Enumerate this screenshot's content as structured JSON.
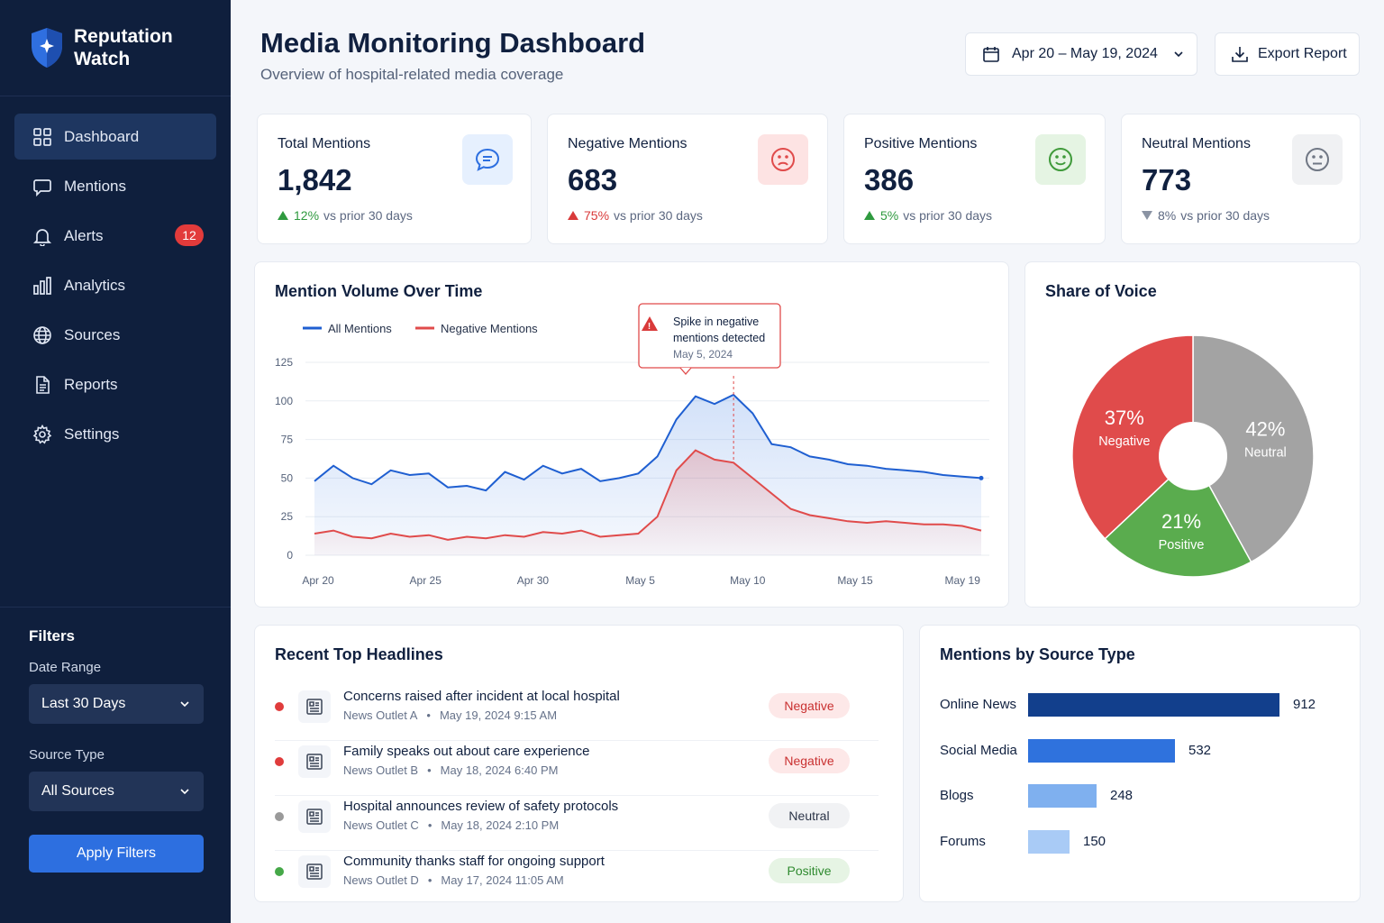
{
  "app": {
    "name": "Reputation Watch"
  },
  "nav": [
    {
      "label": "Dashboard",
      "icon": "grid-icon",
      "active": true
    },
    {
      "label": "Mentions",
      "icon": "chat-icon"
    },
    {
      "label": "Alerts",
      "icon": "bell-icon",
      "badge": "12"
    },
    {
      "label": "Analytics",
      "icon": "bar-chart-icon"
    },
    {
      "label": "Sources",
      "icon": "globe-icon"
    },
    {
      "label": "Reports",
      "icon": "document-icon"
    },
    {
      "label": "Settings",
      "icon": "gear-icon"
    }
  ],
  "filters": {
    "title": "Filters",
    "date_label": "Date Range",
    "date_value": "Last 30 Days",
    "source_label": "Source Type",
    "source_value": "All Sources",
    "apply": "Apply Filters"
  },
  "header": {
    "title": "Media Monitoring Dashboard",
    "subtitle": "Overview of hospital-related media coverage",
    "date_range": "Apr 20 – May 19, 2024",
    "export": "Export Report"
  },
  "kpis": [
    {
      "label": "Total Mentions",
      "value": "1,842",
      "pct": "12%",
      "delta": "vs prior 30 days",
      "direction": "up",
      "color": "#2f9a3f"
    },
    {
      "label": "Negative Mentions",
      "value": "683",
      "pct": "75%",
      "delta": "vs prior 30 days",
      "direction": "up",
      "color": "#d93a3a"
    },
    {
      "label": "Positive Mentions",
      "value": "386",
      "pct": "5%",
      "delta": "vs prior 30 days",
      "direction": "up",
      "color": "#2f9a3f"
    },
    {
      "label": "Neutral Mentions",
      "value": "773",
      "pct": "8%",
      "delta": "vs prior 30 days",
      "direction": "down",
      "color": "#8a93a3"
    }
  ],
  "volume_chart": {
    "title": "Mention Volume Over Time",
    "legend_all": "All Mentions",
    "legend_neg": "Negative Mentions",
    "callout_line1": "Spike in negative",
    "callout_line2": "mentions detected",
    "callout_date": "May 5, 2024"
  },
  "share_chart": {
    "title": "Share of Voice"
  },
  "headlines": {
    "title": "Recent Top Headlines",
    "items": [
      {
        "title": "Concerns raised after incident at local hospital",
        "outlet": "News Outlet A",
        "time": "May 19, 2024 9:15 AM",
        "sentiment": "Negative"
      },
      {
        "title": "Family speaks out about care experience",
        "outlet": "News Outlet B",
        "time": "May 18, 2024 6:40 PM",
        "sentiment": "Negative"
      },
      {
        "title": "Hospital announces review of safety protocols",
        "outlet": "News Outlet C",
        "time": "May 18, 2024 2:10 PM",
        "sentiment": "Neutral"
      },
      {
        "title": "Community thanks staff for ongoing support",
        "outlet": "News Outlet D",
        "time": "May 17, 2024 11:05 AM",
        "sentiment": "Positive"
      }
    ]
  },
  "sources": {
    "title": "Mentions by Source Type"
  },
  "colors": {
    "navy": "#0f1f3d",
    "blue": "#2d6fe0",
    "negative": "#e04b4b",
    "positive": "#5aac4e",
    "neutral": "#a3a3a3"
  },
  "chart_data": [
    {
      "type": "line",
      "title": "Mention Volume Over Time",
      "x_start": "Apr 20",
      "x_tick_labels": [
        "Apr 20",
        "Apr 25",
        "Apr 30",
        "May 5",
        "May 10",
        "May 15",
        "May 19"
      ],
      "y_tick_labels": [
        "0",
        "25",
        "50",
        "75",
        "100",
        "125"
      ],
      "ylim": [
        0,
        125
      ],
      "grid": true,
      "legend": "top-left",
      "series": [
        {
          "name": "All Mentions",
          "color": "#1f5fd1",
          "values": [
            48,
            58,
            50,
            46,
            55,
            52,
            53,
            44,
            45,
            42,
            54,
            49,
            58,
            53,
            56,
            48,
            50,
            53,
            64,
            88,
            103,
            98,
            104,
            92,
            72,
            70,
            64,
            62,
            59,
            58,
            56,
            55,
            54,
            52,
            51,
            50
          ]
        },
        {
          "name": "Negative Mentions",
          "color": "#e04b4b",
          "values": [
            14,
            16,
            12,
            11,
            14,
            12,
            13,
            10,
            12,
            11,
            13,
            12,
            15,
            14,
            16,
            12,
            13,
            14,
            25,
            55,
            68,
            62,
            60,
            50,
            40,
            30,
            26,
            24,
            22,
            21,
            22,
            21,
            20,
            20,
            19,
            16
          ]
        }
      ],
      "annotation": {
        "x": "May 5, 2024",
        "text": "Spike in negative mentions detected"
      }
    },
    {
      "type": "pie",
      "title": "Share of Voice",
      "slices": [
        {
          "label": "Negative",
          "value": 37,
          "color": "#e04b4b"
        },
        {
          "label": "Neutral",
          "value": 42,
          "color": "#a3a3a3"
        },
        {
          "label": "Positive",
          "value": 21,
          "color": "#5aac4e"
        }
      ]
    },
    {
      "type": "bar",
      "title": "Mentions by Source Type",
      "categories": [
        "Online News",
        "Social Media",
        "Blogs",
        "Forums"
      ],
      "values": [
        912,
        532,
        248,
        150
      ],
      "colors": [
        "#123f8c",
        "#2f72dd",
        "#7fb0ef",
        "#a9cbf6"
      ]
    }
  ]
}
